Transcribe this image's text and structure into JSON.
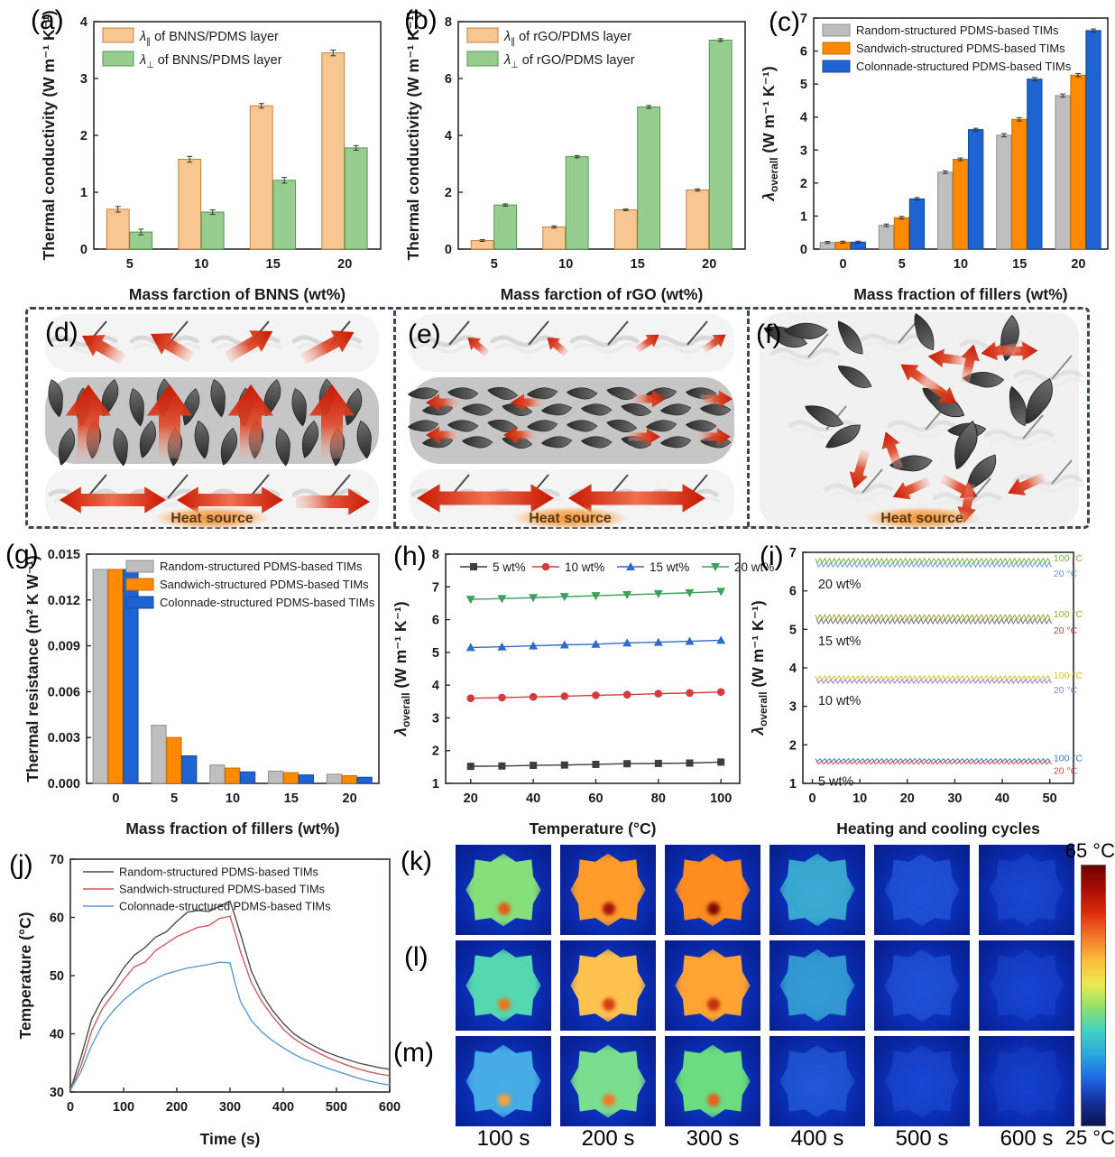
{
  "panels": {
    "a": "(a)",
    "b": "(b)",
    "c": "(c)",
    "d": "(d)",
    "e": "(e)",
    "f": "(f)",
    "g": "(g)",
    "h": "(h)",
    "i": "(i)",
    "j": "(j)",
    "k": "(k)",
    "l": "(l)",
    "m": "(m)"
  },
  "schematics": {
    "heat_source": "Heat source"
  },
  "chart_data": [
    {
      "panel": "a",
      "type": "bar",
      "xlabel": "Mass farction of BNNS (wt%)",
      "ylabel": "Thermal conductivity (W m⁻¹ K⁻¹)",
      "ylim": [
        0,
        4
      ],
      "yticks": [
        0,
        1,
        2,
        3,
        4
      ],
      "categories": [
        "5",
        "10",
        "15",
        "20"
      ],
      "legend": {
        "pos": "tl"
      },
      "series": [
        {
          "label_segments": [
            {
              "t": "λ",
              "i": 1
            },
            {
              "t": "∥",
              "sub": 1
            },
            {
              "t": " of BNNS/PDMS layer"
            }
          ],
          "color": "#F8C791",
          "stroke": "#C0823F",
          "values": [
            0.7,
            1.58,
            2.52,
            3.45
          ],
          "err": [
            0.05,
            0.05,
            0.04,
            0.05
          ]
        },
        {
          "label_segments": [
            {
              "t": "λ",
              "i": 1
            },
            {
              "t": "⊥",
              "sub": 1
            },
            {
              "t": " of BNNS/PDMS layer"
            }
          ],
          "color": "#97CE90",
          "stroke": "#4E9A47",
          "values": [
            0.3,
            0.65,
            1.21,
            1.78
          ],
          "err": [
            0.05,
            0.04,
            0.05,
            0.04
          ]
        }
      ]
    },
    {
      "panel": "b",
      "type": "bar",
      "xlabel": "Mass farction of rGO (wt%)",
      "ylabel": "Thermal conductivity (W m⁻¹ K⁻¹)",
      "ylim": [
        0,
        8
      ],
      "yticks": [
        0,
        2,
        4,
        6,
        8
      ],
      "categories": [
        "5",
        "10",
        "15",
        "20"
      ],
      "legend": {
        "pos": "tl"
      },
      "series": [
        {
          "label_segments": [
            {
              "t": "λ",
              "i": 1
            },
            {
              "t": "∥",
              "sub": 1
            },
            {
              "t": " of rGO/PDMS layer"
            }
          ],
          "color": "#F8C791",
          "stroke": "#C0823F",
          "values": [
            0.3,
            0.78,
            1.38,
            2.08
          ],
          "err": [
            0.03,
            0.04,
            0.03,
            0.04
          ]
        },
        {
          "label_segments": [
            {
              "t": "λ",
              "i": 1
            },
            {
              "t": "⊥",
              "sub": 1
            },
            {
              "t": " of rGO/PDMS layer"
            }
          ],
          "color": "#97CE90",
          "stroke": "#4E9A47",
          "values": [
            1.55,
            3.25,
            5.0,
            7.35
          ],
          "err": [
            0.04,
            0.04,
            0.05,
            0.05
          ]
        }
      ]
    },
    {
      "panel": "c",
      "type": "bar",
      "xlabel": "Mass fraction of fillers (wt%)",
      "ylabel_segments": [
        {
          "t": "λ",
          "i": 1
        },
        {
          "t": "overall",
          "sub": 1
        },
        {
          "t": " (W m⁻¹ K⁻¹)"
        }
      ],
      "ylim": [
        0,
        7
      ],
      "yticks": [
        0,
        1,
        2,
        3,
        4,
        5,
        6,
        7
      ],
      "categories": [
        "0",
        "5",
        "10",
        "15",
        "20"
      ],
      "legend": {
        "pos": "tl"
      },
      "series": [
        {
          "label": "Random-structured PDMS-based TIMs",
          "color": "#BFBFBF",
          "stroke": "#8F8F8F",
          "values": [
            0.2,
            0.72,
            2.33,
            3.45,
            4.65
          ],
          "err": [
            0.03,
            0.04,
            0.04,
            0.05,
            0.05
          ]
        },
        {
          "label": "Sandwich-structured PDMS-based TIMs",
          "color": "#FF8A00",
          "stroke": "#C86A00",
          "values": [
            0.21,
            0.95,
            2.72,
            3.93,
            5.27
          ],
          "err": [
            0.03,
            0.04,
            0.04,
            0.05,
            0.05
          ]
        },
        {
          "label": "Colonnade-structured PDMS-based TIMs",
          "color": "#1D63D1",
          "stroke": "#124A9E",
          "values": [
            0.21,
            1.52,
            3.62,
            5.15,
            6.62
          ],
          "err": [
            0.03,
            0.04,
            0.04,
            0.05,
            0.05
          ]
        }
      ]
    },
    {
      "panel": "g",
      "type": "bar",
      "xlabel": "Mass fraction of fillers (wt%)",
      "ylabel": "Thermal resistance (m² K W⁻¹)",
      "ylim": [
        0,
        0.015
      ],
      "yticks": [
        0,
        0.003,
        0.006,
        0.009,
        0.012,
        0.015
      ],
      "ydec": 3,
      "categories": [
        "0",
        "5",
        "10",
        "15",
        "20"
      ],
      "legend": {
        "pos": "tr"
      },
      "series": [
        {
          "label": "Random-structured PDMS-based TIMs",
          "color": "#BFBFBF",
          "stroke": "#8F8F8F",
          "values": [
            0.014,
            0.0038,
            0.0012,
            0.0008,
            0.0006
          ]
        },
        {
          "label": "Sandwich-structured PDMS-based TIMs",
          "color": "#FF8A00",
          "stroke": "#C86A00",
          "values": [
            0.014,
            0.003,
            0.001,
            0.0007,
            0.0005
          ]
        },
        {
          "label": "Colonnade-structured PDMS-based TIMs",
          "color": "#1D63D1",
          "stroke": "#124A9E",
          "values": [
            0.014,
            0.0018,
            0.00075,
            0.00055,
            0.0004
          ]
        }
      ]
    },
    {
      "panel": "h",
      "type": "line",
      "xlabel": "Temperature (°C)",
      "ylabel_segments": [
        {
          "t": "λ",
          "i": 1
        },
        {
          "t": "overall",
          "sub": 1
        },
        {
          "t": " (W m⁻¹ K⁻¹)"
        }
      ],
      "xlim": [
        12,
        106
      ],
      "xticks": [
        20,
        40,
        60,
        80,
        100
      ],
      "ylim": [
        1,
        8
      ],
      "yticks": [
        1,
        2,
        3,
        4,
        5,
        6,
        7,
        8
      ],
      "x": [
        20,
        30,
        40,
        50,
        60,
        70,
        80,
        90,
        100
      ],
      "series": [
        {
          "label": "5 wt%",
          "color": "#3D3D3D",
          "marker": "square",
          "values": [
            1.52,
            1.53,
            1.55,
            1.56,
            1.58,
            1.6,
            1.61,
            1.62,
            1.65
          ]
        },
        {
          "label": "10 wt%",
          "color": "#D23C3C",
          "marker": "circle",
          "values": [
            3.6,
            3.62,
            3.64,
            3.66,
            3.69,
            3.71,
            3.74,
            3.76,
            3.79
          ]
        },
        {
          "label": "15 wt%",
          "color": "#2F6BCC",
          "marker": "triangle-up",
          "values": [
            5.15,
            5.17,
            5.2,
            5.23,
            5.25,
            5.29,
            5.31,
            5.34,
            5.37
          ]
        },
        {
          "label": "20 wt%",
          "color": "#3DA05A",
          "marker": "triangle-down",
          "values": [
            6.62,
            6.64,
            6.67,
            6.7,
            6.73,
            6.76,
            6.79,
            6.82,
            6.86
          ]
        }
      ]
    },
    {
      "panel": "i",
      "type": "cycles",
      "xlabel": "Heating and cooling cycles",
      "ylabel_segments": [
        {
          "t": "λ",
          "i": 1
        },
        {
          "t": "overall",
          "sub": 1
        },
        {
          "t": " (W m⁻¹ K⁻¹)"
        }
      ],
      "xlim": [
        -2,
        55
      ],
      "xticks": [
        0,
        10,
        20,
        30,
        40,
        50
      ],
      "ylim": [
        1,
        7
      ],
      "yticks": [
        1,
        2,
        3,
        4,
        5,
        6,
        7
      ],
      "cycles": 50,
      "bands": [
        {
          "label": "5 wt%",
          "low": 1.5,
          "high": 1.64,
          "high_color": "#3F77C9",
          "low_color": "#D2493C",
          "high_label": "100 °C",
          "low_label": "20 °C"
        },
        {
          "label": "10 wt%",
          "low": 3.6,
          "high": 3.79,
          "high_color": "#D3C232",
          "low_color": "#9C7BD0",
          "high_label": "100 °C",
          "low_label": "20 °C"
        },
        {
          "label": "15 wt%",
          "low": 5.15,
          "high": 5.38,
          "high_color": "#A3A53A",
          "low_color": "#6E6E6E",
          "high_label": "100 °C",
          "low_label": "20 °C",
          "low_label_color": "#A85048"
        },
        {
          "label": "20 wt%",
          "low": 6.62,
          "high": 6.84,
          "high_color": "#7CB33E",
          "low_color": "#62A0D8",
          "high_label": "100 °C",
          "low_label": "20 °C"
        }
      ]
    },
    {
      "panel": "j",
      "type": "curves",
      "xlabel": "Time (s)",
      "ylabel": "Temperature (°C)",
      "xlim": [
        0,
        600
      ],
      "xticks": [
        0,
        100,
        200,
        300,
        400,
        500,
        600
      ],
      "ylim": [
        30,
        70
      ],
      "yticks": [
        30,
        40,
        50,
        60,
        70
      ],
      "x": [
        0,
        20,
        40,
        60,
        80,
        100,
        120,
        140,
        160,
        180,
        200,
        220,
        240,
        260,
        280,
        300,
        310,
        320,
        340,
        360,
        380,
        400,
        420,
        440,
        460,
        480,
        500,
        520,
        540,
        560,
        580,
        600
      ],
      "series": [
        {
          "label": "Random-structured PDMS-based TIMs",
          "color": "#4D4D4D",
          "y": [
            30.3,
            36.0,
            42.5,
            46.0,
            48.4,
            51.3,
            53.5,
            54.8,
            56.6,
            57.5,
            59.3,
            60.9,
            61.2,
            61.0,
            61.9,
            62.8,
            60.0,
            57.0,
            50.8,
            46.8,
            44.0,
            41.8,
            40.0,
            38.8,
            37.8,
            36.9,
            36.2,
            35.6,
            35.0,
            34.6,
            34.2,
            33.9
          ]
        },
        {
          "label": "Sandwich-structured PDMS-based TIMs",
          "color": "#CD5C5C",
          "y": [
            30.3,
            34.5,
            40.5,
            44.3,
            46.8,
            49.3,
            51.5,
            52.3,
            54.3,
            55.5,
            56.7,
            57.5,
            58.3,
            58.6,
            59.8,
            60.2,
            57.2,
            54.0,
            48.8,
            45.5,
            43.0,
            40.8,
            39.2,
            38.0,
            37.0,
            36.1,
            35.3,
            34.6,
            34.0,
            33.5,
            33.1,
            32.8
          ]
        },
        {
          "label": "Colonnade-structured PDMS-based TIMs",
          "color": "#5B9BD5",
          "y": [
            30.3,
            33.5,
            38.0,
            41.5,
            43.9,
            45.8,
            47.3,
            48.6,
            49.5,
            50.3,
            50.8,
            51.3,
            51.6,
            51.9,
            52.3,
            52.2,
            48.5,
            45.5,
            42.3,
            40.3,
            38.8,
            37.6,
            36.5,
            35.6,
            34.9,
            34.2,
            33.6,
            33.0,
            32.4,
            31.9,
            31.5,
            31.2
          ]
        }
      ]
    }
  ],
  "thermal_maps": {
    "time_labels": [
      "100 s",
      "200 s",
      "300 s",
      "400 s",
      "500 s",
      "600 s"
    ],
    "colorbar": {
      "top": "65 °C",
      "bottom": "25 °C",
      "colors": [
        "#6E0202",
        "#A80D05",
        "#DD2C0A",
        "#F4762A",
        "#FBBB3C",
        "#EDE94E",
        "#90E06A",
        "#41D2C2",
        "#2AA8E0",
        "#1F68E5",
        "#16309C",
        "#0A1353"
      ]
    },
    "rows": [
      {
        "panel": "k",
        "cells": [
          {
            "star": "#86E07A",
            "hot": "#E05A1A",
            "star_opacity": 1
          },
          {
            "star": "#FF9C2A",
            "hot": "#A31208",
            "star_opacity": 1
          },
          {
            "star": "#FF8D1F",
            "hot": "#7E0B04",
            "star_opacity": 1
          },
          {
            "star": "#49CFD6",
            "hot": "",
            "star_opacity": 0.75
          },
          {
            "star": "#2A62E2",
            "hot": "",
            "star_opacity": 0.6
          },
          {
            "star": "#2452D8",
            "hot": "",
            "star_opacity": 0.45
          }
        ]
      },
      {
        "panel": "l",
        "cells": [
          {
            "star": "#55D8B2",
            "hot": "#E8751F",
            "star_opacity": 1
          },
          {
            "star": "#FFC24F",
            "hot": "#D63A10",
            "star_opacity": 1
          },
          {
            "star": "#FFA433",
            "hot": "#C52F0C",
            "star_opacity": 1
          },
          {
            "star": "#43C3DC",
            "hot": "",
            "star_opacity": 0.7
          },
          {
            "star": "#2A62E2",
            "hot": "",
            "star_opacity": 0.55
          },
          {
            "star": "#2452D8",
            "hot": "",
            "star_opacity": 0.4
          }
        ]
      },
      {
        "panel": "m",
        "cells": [
          {
            "star": "#49B4E8",
            "hot": "#F2A43C",
            "star_opacity": 0.95
          },
          {
            "star": "#7ADE8F",
            "hot": "#F07828",
            "star_opacity": 1
          },
          {
            "star": "#6ADD80",
            "hot": "#E85C1C",
            "star_opacity": 1
          },
          {
            "star": "#2F6DE0",
            "hot": "",
            "star_opacity": 0.55
          },
          {
            "star": "#2456DA",
            "hot": "",
            "star_opacity": 0.45
          },
          {
            "star": "#2149CE",
            "hot": "",
            "star_opacity": 0.35
          }
        ]
      }
    ]
  }
}
